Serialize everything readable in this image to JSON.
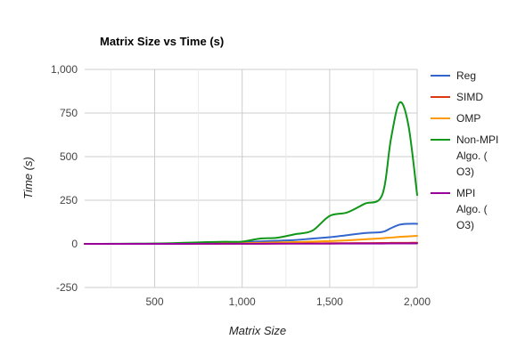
{
  "chart_data": {
    "type": "line",
    "title": "Matrix Size vs Time (s)",
    "xlabel": "Matrix Size",
    "ylabel": "Time (s)",
    "xlim": [
      100,
      2000
    ],
    "ylim": [
      -250,
      1000
    ],
    "xticks": [
      500,
      1000,
      1500,
      2000
    ],
    "yticks": [
      -250,
      0,
      250,
      500,
      750,
      1000
    ],
    "xtick_labels": [
      "500",
      "1,000",
      "1,500",
      "2,000"
    ],
    "ytick_labels": [
      "-250",
      "0",
      "250",
      "500",
      "750",
      "1,000"
    ],
    "grid": true,
    "legend_position": "right",
    "x": [
      100,
      200,
      300,
      400,
      500,
      600,
      700,
      800,
      900,
      1000,
      1100,
      1200,
      1300,
      1400,
      1500,
      1600,
      1700,
      1800,
      1850,
      1900,
      1950,
      2000
    ],
    "series": [
      {
        "name": "Reg",
        "color": "#3366cc",
        "legend_lines": [
          "Reg"
        ],
        "values": [
          0,
          0,
          0.2,
          0.5,
          1,
          2,
          3,
          5,
          7,
          10,
          14,
          18,
          22,
          30,
          38,
          50,
          62,
          68,
          90,
          110,
          115,
          115
        ]
      },
      {
        "name": "SIMD",
        "color": "#dc3912",
        "legend_lines": [
          "SIMD"
        ],
        "values": [
          0,
          0,
          0,
          0.1,
          0.2,
          0.3,
          0.5,
          0.7,
          1,
          1.2,
          1.5,
          2,
          2.5,
          3,
          3.5,
          4,
          4.5,
          5,
          5.5,
          6,
          6,
          6.5
        ]
      },
      {
        "name": "OMP",
        "color": "#ff9900",
        "legend_lines": [
          "OMP"
        ],
        "values": [
          0,
          0,
          0.1,
          0.2,
          0.5,
          1,
          1.5,
          2,
          3,
          4,
          6,
          8,
          10,
          13,
          16,
          20,
          26,
          32,
          36,
          40,
          43,
          46
        ]
      },
      {
        "name": "Non-MPI Algo. (O3)",
        "color": "#109618",
        "legend_lines": [
          "Non-MPI",
          "Algo. (",
          "O3)"
        ],
        "values": [
          0,
          0,
          0.5,
          1,
          2,
          4,
          7,
          10,
          12,
          13,
          30,
          35,
          55,
          75,
          160,
          180,
          230,
          280,
          600,
          810,
          680,
          280
        ]
      },
      {
        "name": "MPI Algo. (O3)",
        "color": "#990099",
        "legend_lines": [
          "MPI",
          "Algo. (",
          "O3)"
        ],
        "values": [
          0,
          0,
          0,
          0,
          0.1,
          0.2,
          0.3,
          0.4,
          0.5,
          0.6,
          0.8,
          1,
          1.2,
          1.4,
          1.6,
          1.8,
          2,
          2.2,
          2.4,
          2.6,
          2.8,
          3
        ]
      }
    ]
  }
}
